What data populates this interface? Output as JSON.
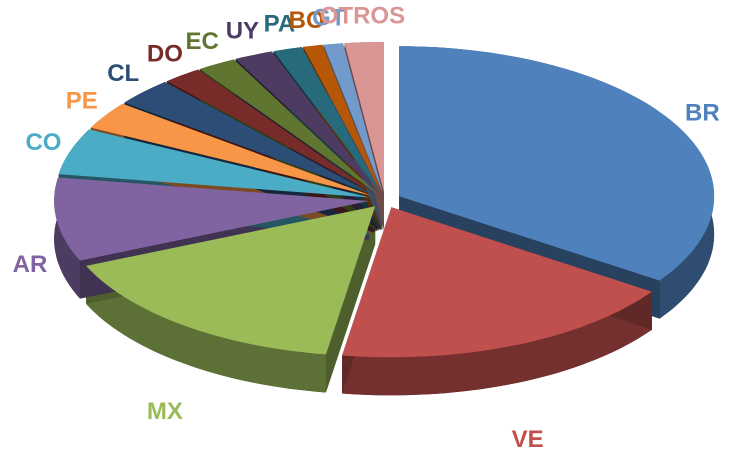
{
  "chart_data": {
    "type": "pie",
    "categories": [
      "BR",
      "VE",
      "MX",
      "AR",
      "CO",
      "PE",
      "CL",
      "DO",
      "EC",
      "UY",
      "PA",
      "BO",
      "GT",
      "OTROS"
    ],
    "values": [
      34.5,
      18,
      16,
      9,
      5,
      3,
      3,
      2,
      2,
      2,
      1.5,
      1,
      1,
      2
    ],
    "colors": [
      "#4f81bd",
      "#c0504d",
      "#9bbb59",
      "#8064a2",
      "#4bacc6",
      "#f79646",
      "#2c4d75",
      "#772c2a",
      "#5f7530",
      "#4d3b62",
      "#276a7c",
      "#b65708",
      "#729aca",
      "#d99694"
    ]
  }
}
